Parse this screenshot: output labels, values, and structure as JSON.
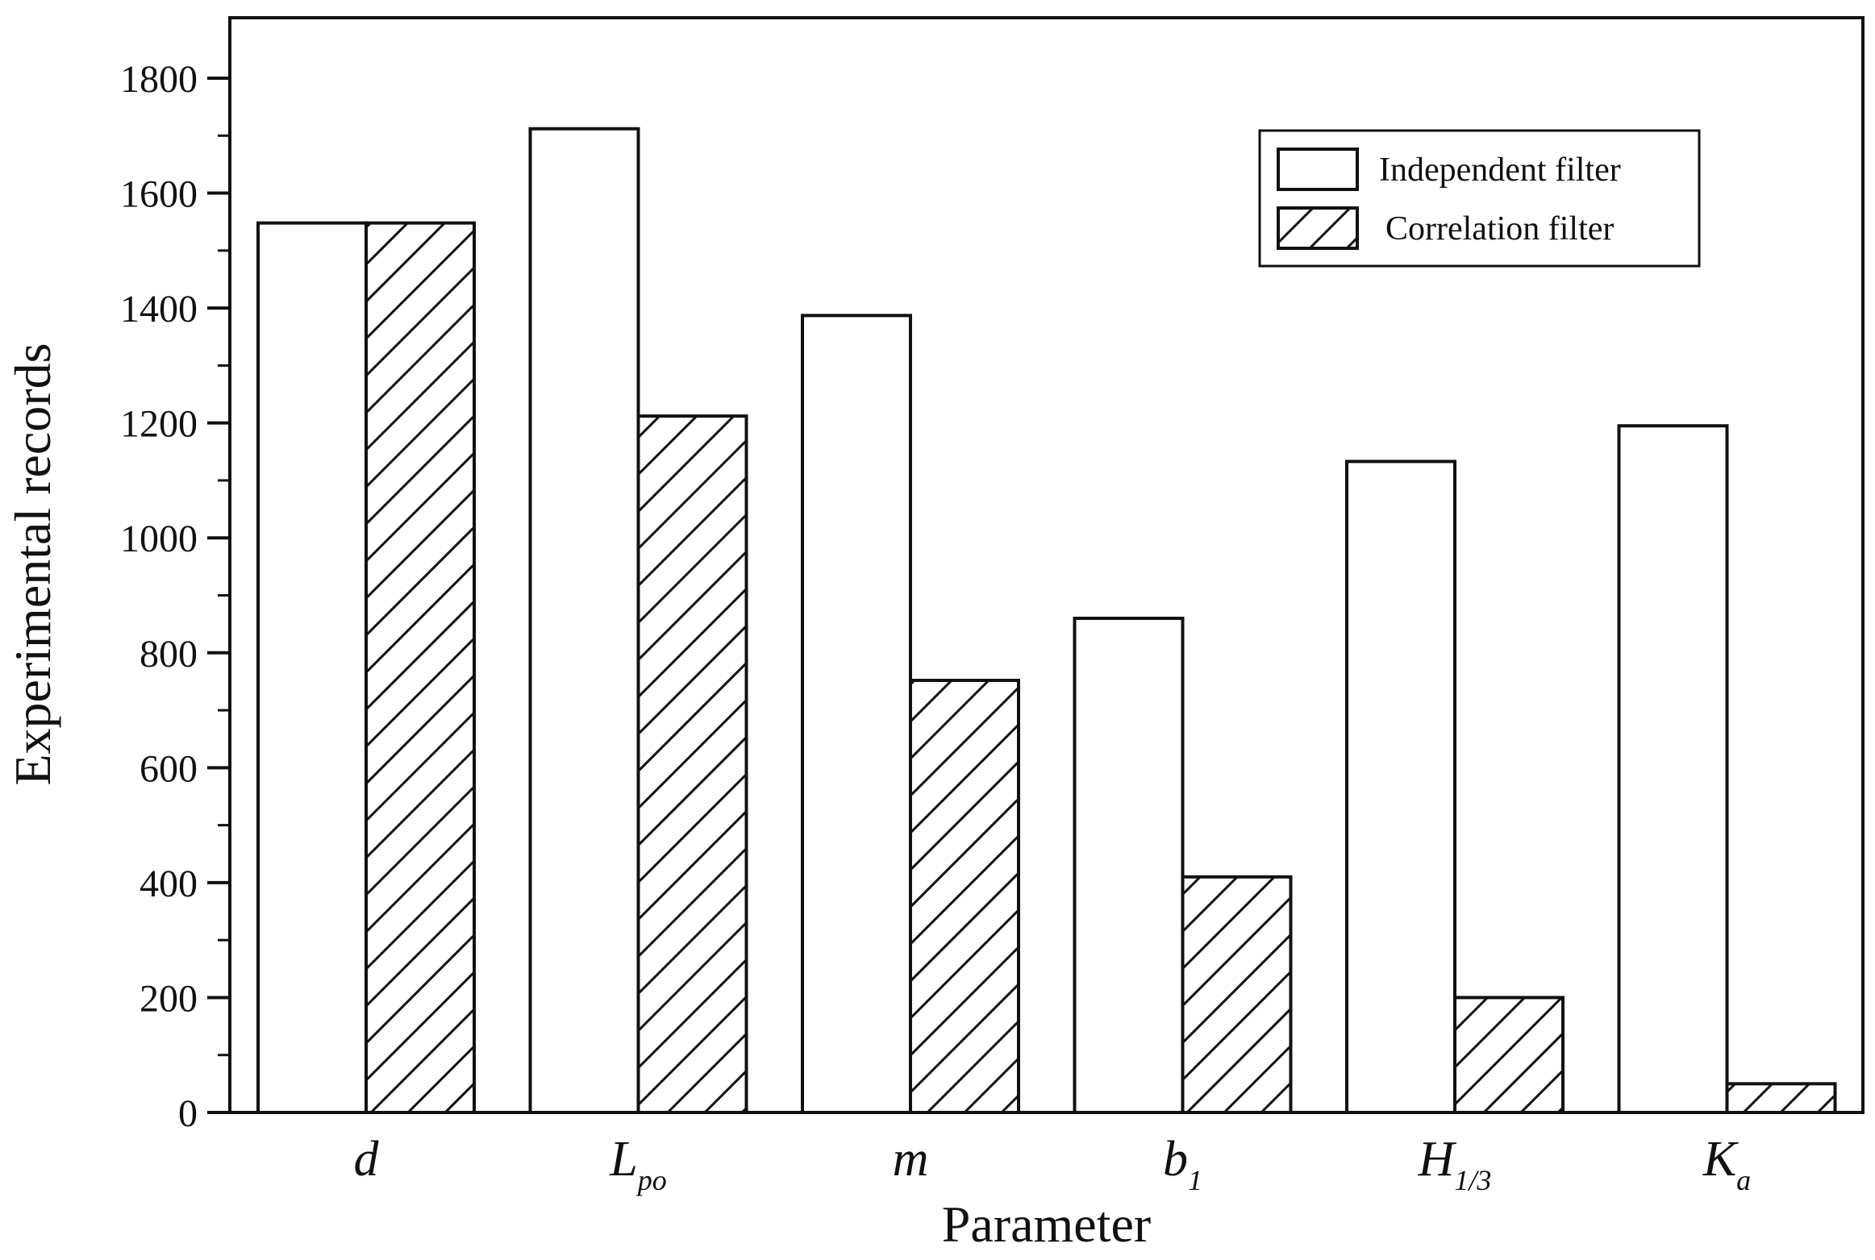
{
  "chart_data": {
    "type": "bar",
    "categories": [
      {
        "base": "d",
        "sub": ""
      },
      {
        "base": "L",
        "sub": "po"
      },
      {
        "base": "m",
        "sub": ""
      },
      {
        "base": "b",
        "sub": "1"
      },
      {
        "base": "H",
        "sub": "1/3"
      },
      {
        "base": "K",
        "sub": "a"
      }
    ],
    "series": [
      {
        "name": "Independent filter",
        "pattern": "solid",
        "values": [
          1548,
          1712,
          1387,
          860,
          1133,
          1195
        ]
      },
      {
        "name": "Correlation filter",
        "pattern": "hatch",
        "values": [
          1548,
          1212,
          752,
          410,
          200,
          50
        ]
      }
    ],
    "title": "",
    "xlabel": "Parameter",
    "ylabel": "Experimental records",
    "ylim": [
      0,
      1800
    ],
    "yticks": [
      0,
      200,
      400,
      600,
      800,
      1000,
      1200,
      1400,
      1600,
      1800
    ],
    "grid": false,
    "legend": "top-right",
    "colors": {
      "stroke": "#111111",
      "fill": "#ffffff",
      "background": "#ffffff"
    }
  }
}
